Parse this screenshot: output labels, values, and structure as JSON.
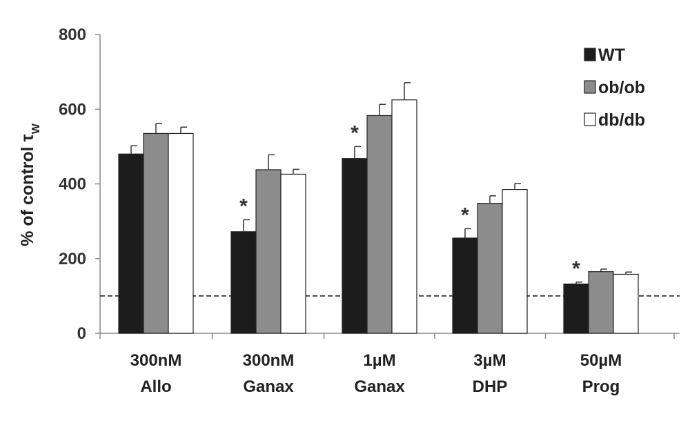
{
  "chart_data": {
    "type": "bar",
    "title": "",
    "xlabel": "",
    "ylabel": "% of control τ",
    "ylabel_subscript": "W",
    "ylim": [
      0,
      800
    ],
    "yticks": [
      0,
      200,
      400,
      600,
      800
    ],
    "grid": false,
    "legend_position": "top-right",
    "categories": [
      [
        "300nM",
        "Allo"
      ],
      [
        "300nM",
        "Ganax"
      ],
      [
        "1µM",
        "Ganax"
      ],
      [
        "3µM",
        "DHP"
      ],
      [
        "50µM",
        "Prog"
      ]
    ],
    "series": [
      {
        "name": "WT",
        "color": "#1c1c1c",
        "values": [
          480,
          272,
          468,
          255,
          132
        ],
        "errors": [
          22,
          32,
          32,
          25,
          5
        ]
      },
      {
        "name": "ob/ob",
        "color": "#8c8c8c",
        "values": [
          535,
          438,
          583,
          348,
          165
        ],
        "errors": [
          27,
          40,
          30,
          20,
          7
        ]
      },
      {
        "name": "db/db",
        "color": "#ffffff",
        "values": [
          535,
          426,
          625,
          385,
          158
        ],
        "errors": [
          17,
          13,
          46,
          16,
          6
        ]
      }
    ],
    "significance": [
      {
        "category_index": 1,
        "series_index": 0,
        "label": "*"
      },
      {
        "category_index": 2,
        "series_index": 0,
        "label": "*"
      },
      {
        "category_index": 3,
        "series_index": 0,
        "label": "*"
      },
      {
        "category_index": 4,
        "series_index": 0,
        "label": "*"
      }
    ],
    "reference_line": {
      "y": 100,
      "style": "dashed"
    }
  }
}
